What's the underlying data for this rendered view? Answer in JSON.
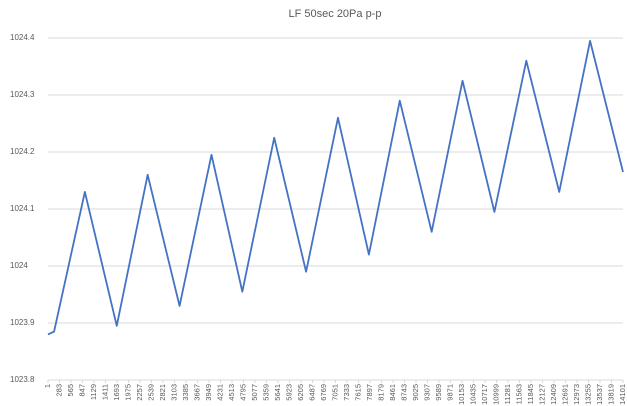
{
  "chart_data": {
    "type": "line",
    "title": "LF 50sec 20Pa p-p",
    "xlim": [
      1,
      14101
    ],
    "xticks": [
      1,
      283,
      565,
      847,
      1129,
      1411,
      1693,
      1975,
      2257,
      2539,
      2821,
      3103,
      3385,
      3667,
      3949,
      4231,
      4513,
      4795,
      5077,
      5359,
      5641,
      5923,
      6205,
      6487,
      6769,
      7051,
      7333,
      7615,
      7897,
      8179,
      8461,
      8743,
      9025,
      9307,
      9589,
      9871,
      10153,
      10435,
      10717,
      10999,
      11281,
      11563,
      11845,
      12127,
      12409,
      12691,
      12973,
      13255,
      13537,
      13819,
      14101
    ],
    "ylim": [
      1023.8,
      1024.4
    ],
    "yticks": [
      1023.8,
      1023.9,
      1024,
      1024.1,
      1024.2,
      1024.3,
      1024.4
    ],
    "grid": true,
    "series": [
      {
        "color": "#4472c4",
        "x": [
          1,
          150,
          905,
          1687,
          2445,
          3227,
          4010,
          4766,
          5548,
          6330,
          7112,
          7870,
          8627,
          9409,
          10166,
          10948,
          11730,
          12537,
          13294,
          14101
        ],
        "values": [
          1023.88,
          1023.885,
          1024.13,
          1023.895,
          1024.16,
          1023.93,
          1024.195,
          1023.955,
          1024.225,
          1023.99,
          1024.26,
          1024.02,
          1024.29,
          1024.06,
          1024.325,
          1024.095,
          1024.36,
          1024.13,
          1024.395,
          1024.165
        ]
      }
    ]
  }
}
